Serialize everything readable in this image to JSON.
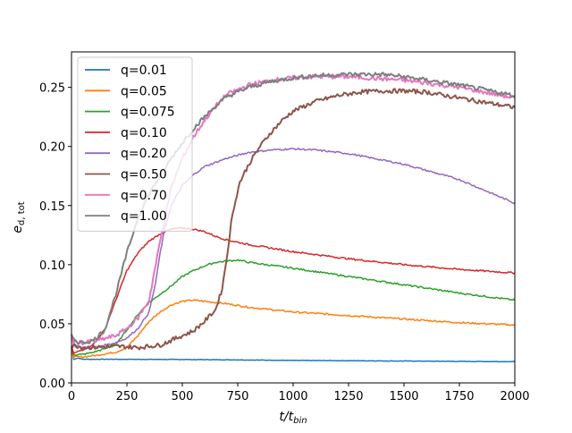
{
  "chart_data": {
    "type": "line",
    "title": "",
    "xlabel_main": "t/t",
    "xlabel_sub": "bin",
    "ylabel_main": "e",
    "ylabel_sub": "d, tot",
    "xlim": [
      0,
      2000
    ],
    "ylim": [
      0,
      0.28
    ],
    "xticks": [
      0,
      250,
      500,
      750,
      1000,
      1250,
      1500,
      1750,
      2000
    ],
    "yticks": [
      0.0,
      0.05,
      0.1,
      0.15,
      0.2,
      0.25
    ],
    "grid": false,
    "legend_position": "upper-left",
    "series": [
      {
        "name": "q=0.01",
        "color": "#1f77b4",
        "x": [
          0,
          10,
          30,
          50,
          100,
          200,
          500,
          750,
          1000,
          1250,
          1500,
          1750,
          2000
        ],
        "y": [
          0.03,
          0.02,
          0.021,
          0.02,
          0.02,
          0.02,
          0.0198,
          0.0195,
          0.019,
          0.0188,
          0.0185,
          0.0182,
          0.018
        ]
      },
      {
        "name": "q=0.05",
        "color": "#ff7f0e",
        "x": [
          0,
          10,
          50,
          100,
          200,
          250,
          300,
          350,
          400,
          450,
          500,
          550,
          600,
          700,
          800,
          1000,
          1250,
          1500,
          1750,
          2000
        ],
        "y": [
          0.03,
          0.022,
          0.022,
          0.023,
          0.026,
          0.03,
          0.04,
          0.052,
          0.06,
          0.066,
          0.069,
          0.07,
          0.069,
          0.067,
          0.064,
          0.06,
          0.057,
          0.054,
          0.051,
          0.049
        ]
      },
      {
        "name": "q=0.075",
        "color": "#2ca02c",
        "x": [
          0,
          10,
          50,
          100,
          200,
          250,
          300,
          350,
          400,
          450,
          500,
          550,
          600,
          650,
          700,
          750,
          800,
          1000,
          1250,
          1500,
          1750,
          2000
        ],
        "y": [
          0.03,
          0.024,
          0.024,
          0.026,
          0.032,
          0.045,
          0.058,
          0.068,
          0.075,
          0.082,
          0.09,
          0.095,
          0.099,
          0.102,
          0.103,
          0.104,
          0.102,
          0.097,
          0.09,
          0.083,
          0.076,
          0.07
        ]
      },
      {
        "name": "q=0.10",
        "color": "#d62728",
        "x": [
          0,
          10,
          50,
          100,
          150,
          200,
          250,
          300,
          350,
          400,
          450,
          500,
          550,
          600,
          650,
          700,
          800,
          1000,
          1250,
          1500,
          1750,
          2000
        ],
        "y": [
          0.03,
          0.025,
          0.028,
          0.033,
          0.045,
          0.07,
          0.095,
          0.11,
          0.12,
          0.126,
          0.13,
          0.131,
          0.13,
          0.128,
          0.124,
          0.121,
          0.117,
          0.111,
          0.105,
          0.1,
          0.096,
          0.093
        ]
      },
      {
        "name": "q=0.20",
        "color": "#9467bd",
        "x": [
          0,
          10,
          50,
          100,
          200,
          250,
          300,
          350,
          380,
          400,
          420,
          450,
          500,
          550,
          600,
          700,
          800,
          900,
          1000,
          1100,
          1250,
          1500,
          1750,
          1900,
          2000
        ],
        "y": [
          0.04,
          0.032,
          0.03,
          0.03,
          0.034,
          0.038,
          0.046,
          0.06,
          0.085,
          0.11,
          0.13,
          0.15,
          0.167,
          0.176,
          0.183,
          0.19,
          0.195,
          0.197,
          0.198,
          0.197,
          0.194,
          0.185,
          0.172,
          0.16,
          0.152
        ]
      },
      {
        "name": "q=0.50",
        "color": "#8c564b",
        "x": [
          0,
          10,
          50,
          100,
          200,
          300,
          400,
          500,
          550,
          600,
          650,
          680,
          700,
          720,
          740,
          760,
          800,
          850,
          900,
          950,
          1000,
          1100,
          1200,
          1300,
          1400,
          1500,
          1600,
          1750,
          2000
        ],
        "y": [
          0.03,
          0.032,
          0.03,
          0.03,
          0.031,
          0.03,
          0.032,
          0.04,
          0.044,
          0.052,
          0.062,
          0.08,
          0.105,
          0.135,
          0.155,
          0.17,
          0.185,
          0.2,
          0.212,
          0.222,
          0.23,
          0.238,
          0.243,
          0.246,
          0.247,
          0.247,
          0.246,
          0.241,
          0.233
        ]
      },
      {
        "name": "q=0.70",
        "color": "#e377c2",
        "x": [
          0,
          10,
          50,
          100,
          200,
          250,
          300,
          350,
          400,
          450,
          500,
          550,
          600,
          650,
          700,
          800,
          900,
          1000,
          1100,
          1250,
          1500,
          1750,
          2000
        ],
        "y": [
          0.038,
          0.035,
          0.034,
          0.035,
          0.04,
          0.046,
          0.055,
          0.07,
          0.12,
          0.165,
          0.19,
          0.208,
          0.222,
          0.234,
          0.244,
          0.252,
          0.256,
          0.258,
          0.259,
          0.259,
          0.256,
          0.25,
          0.241
        ]
      },
      {
        "name": "q=1.00",
        "color": "#7f7f7f",
        "x": [
          0,
          10,
          50,
          100,
          150,
          200,
          250,
          300,
          350,
          400,
          450,
          500,
          550,
          600,
          650,
          700,
          800,
          900,
          1000,
          1100,
          1250,
          1400,
          1500,
          1750,
          2000
        ],
        "y": [
          0.04,
          0.036,
          0.034,
          0.036,
          0.045,
          0.075,
          0.11,
          0.14,
          0.16,
          0.175,
          0.19,
          0.203,
          0.215,
          0.225,
          0.234,
          0.242,
          0.25,
          0.255,
          0.258,
          0.26,
          0.261,
          0.261,
          0.259,
          0.252,
          0.243
        ]
      }
    ]
  }
}
